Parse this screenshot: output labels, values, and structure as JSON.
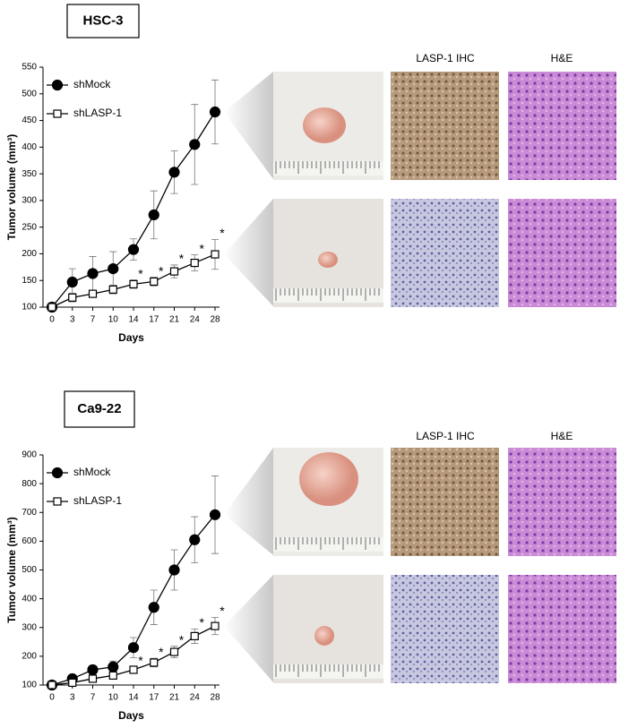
{
  "chart_data": [
    {
      "type": "line",
      "title": "HSC-3",
      "x_label": "Days",
      "y_label": "Tumor volume (mm³)",
      "categories": [
        "0",
        "3",
        "7",
        "10",
        "14",
        "17",
        "21",
        "24",
        "28"
      ],
      "series": [
        {
          "name": "shMock",
          "color": "#000000",
          "marker": "circle",
          "filled": true,
          "values": [
            100,
            147,
            163,
            172,
            208,
            273,
            353,
            405,
            466
          ],
          "errors": [
            0,
            25,
            32,
            32,
            20,
            45,
            40,
            75,
            60
          ]
        },
        {
          "name": "shLASP-1",
          "color": "#000000",
          "marker": "square",
          "filled": false,
          "values": [
            100,
            118,
            125,
            133,
            143,
            148,
            167,
            183,
            199
          ],
          "errors": [
            0,
            8,
            5,
            8,
            8,
            8,
            12,
            15,
            28
          ]
        }
      ],
      "annotations": [
        {
          "text": "*",
          "x": "14"
        },
        {
          "text": "*",
          "x": "17"
        },
        {
          "text": "*",
          "x": "21"
        },
        {
          "text": "*",
          "x": "24"
        },
        {
          "text": "*",
          "x": "28"
        }
      ],
      "ylim": [
        100,
        550
      ],
      "yticks": [
        100,
        150,
        200,
        250,
        300,
        350,
        400,
        450,
        500,
        550
      ],
      "legend": "upper left",
      "image_headers": [
        "LASP-1 IHC",
        "H&E"
      ]
    },
    {
      "type": "line",
      "title": "Ca9-22",
      "x_label": "Days",
      "y_label": "Tumor volume (mm³)",
      "categories": [
        "0",
        "3",
        "7",
        "10",
        "14",
        "17",
        "21",
        "24",
        "28"
      ],
      "series": [
        {
          "name": "shMock",
          "color": "#000000",
          "marker": "circle",
          "filled": true,
          "values": [
            100,
            122,
            153,
            163,
            230,
            370,
            500,
            605,
            692
          ],
          "errors": [
            0,
            10,
            15,
            20,
            35,
            60,
            70,
            80,
            135
          ]
        },
        {
          "name": "shLASP-1",
          "color": "#000000",
          "marker": "square",
          "filled": false,
          "values": [
            100,
            108,
            122,
            133,
            153,
            178,
            215,
            270,
            305
          ],
          "errors": [
            0,
            5,
            8,
            8,
            10,
            15,
            20,
            25,
            30
          ]
        }
      ],
      "annotations": [
        {
          "text": "*",
          "x": "14"
        },
        {
          "text": "*",
          "x": "17"
        },
        {
          "text": "*",
          "x": "21"
        },
        {
          "text": "*",
          "x": "24"
        },
        {
          "text": "*",
          "x": "28"
        }
      ],
      "ylim": [
        100,
        900
      ],
      "yticks": [
        100,
        200,
        300,
        400,
        500,
        600,
        700,
        800,
        900
      ],
      "legend": "upper left",
      "image_headers": [
        "LASP-1 IHC",
        "H&E"
      ]
    }
  ]
}
